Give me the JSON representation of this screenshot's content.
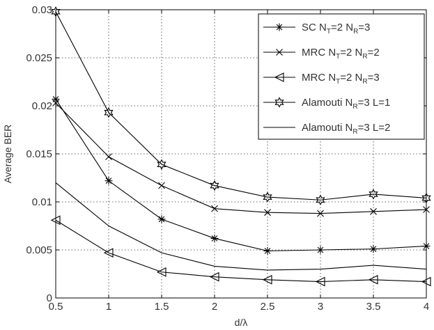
{
  "chart_data": {
    "type": "line",
    "title": "",
    "xlabel": "d/λ",
    "ylabel": "Average BER",
    "xlim": [
      0.5,
      4
    ],
    "ylim": [
      0,
      0.03
    ],
    "x_ticks": [
      "0.5",
      "1",
      "1.5",
      "2",
      "2.5",
      "3",
      "3.5",
      "4"
    ],
    "y_ticks": [
      "0",
      "0.005",
      "0.01",
      "0.015",
      "0.02",
      "0.025",
      "0.03"
    ],
    "grid": true,
    "legend_position": "top-right",
    "x": [
      0.5,
      1,
      1.5,
      2,
      2.5,
      3,
      3.5,
      4
    ],
    "series": [
      {
        "legend_main": "SC N",
        "legend_parts": [
          {
            "text": "SC N",
            "sub": false
          },
          {
            "text": "T",
            "sub": true
          },
          {
            "text": "=2 N",
            "sub": false
          },
          {
            "text": "R",
            "sub": true
          },
          {
            "text": "=3",
            "sub": false
          }
        ],
        "marker": "asterisk",
        "values": [
          0.0207,
          0.0122,
          0.0082,
          0.0062,
          0.0049,
          0.005,
          0.0051,
          0.0054
        ]
      },
      {
        "legend_main": "MRC N",
        "legend_parts": [
          {
            "text": "MRC N",
            "sub": false
          },
          {
            "text": "T",
            "sub": true
          },
          {
            "text": "=2 N",
            "sub": false
          },
          {
            "text": "R",
            "sub": true
          },
          {
            "text": "=2",
            "sub": false
          }
        ],
        "marker": "x",
        "values": [
          0.0203,
          0.0147,
          0.0117,
          0.0093,
          0.0089,
          0.0088,
          0.009,
          0.0092
        ]
      },
      {
        "legend_main": "MRC N",
        "legend_parts": [
          {
            "text": "MRC N",
            "sub": false
          },
          {
            "text": "T",
            "sub": true
          },
          {
            "text": "=2 N",
            "sub": false
          },
          {
            "text": "R",
            "sub": true
          },
          {
            "text": "=3",
            "sub": false
          }
        ],
        "marker": "triangle-left",
        "values": [
          0.0081,
          0.0047,
          0.0027,
          0.0022,
          0.0019,
          0.0017,
          0.0019,
          0.0017
        ]
      },
      {
        "legend_main": "Alamouti N",
        "legend_parts": [
          {
            "text": "Alamouti N",
            "sub": false
          },
          {
            "text": "R",
            "sub": true
          },
          {
            "text": "=3 L=1",
            "sub": false
          }
        ],
        "marker": "hexagram",
        "values": [
          0.0298,
          0.0193,
          0.0139,
          0.0117,
          0.0105,
          0.0102,
          0.0108,
          0.0104
        ]
      },
      {
        "legend_main": "Alamouti N",
        "legend_parts": [
          {
            "text": "Alamouti N",
            "sub": false
          },
          {
            "text": "R",
            "sub": true
          },
          {
            "text": "=3 L=2",
            "sub": false
          }
        ],
        "marker": "none",
        "values": [
          0.012,
          0.0075,
          0.0047,
          0.0033,
          0.0029,
          0.003,
          0.0034,
          0.003
        ]
      }
    ]
  }
}
